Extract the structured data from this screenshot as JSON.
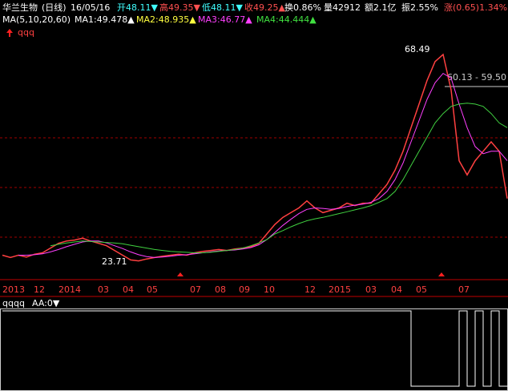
{
  "header": {
    "name": "华兰生物",
    "period": "(日线)",
    "date": "16/05/16",
    "open": "开48.11▼",
    "high": "高49.35▼",
    "low": "低48.11▼",
    "close": "收49.25▲",
    "turnover": "换0.86%",
    "volume": "量42912",
    "amount": "额2.1亿",
    "amplitude": "振2.55%",
    "change": "涨(0.65)1.34%"
  },
  "ma_header": {
    "params": "MA(5,10,20,60)",
    "ma1": "MA1:49.478▲",
    "ma2": "MA2:48.935▲",
    "ma3": "MA3:46.77▲",
    "ma4": "MA4:44.444▲"
  },
  "formula_label": "qqq",
  "chart_data": [
    {
      "type": "line",
      "ylim": [
        20.5,
        71.4
      ],
      "annotations": [
        "68.49",
        "23.71",
        "60.13 - 59.50"
      ],
      "xlabels": [
        "2013",
        "12",
        "2014",
        "03",
        "04",
        "05",
        "07",
        "08",
        "09",
        "10",
        "12",
        "2015",
        "03",
        "04",
        "05",
        "07"
      ],
      "series": [
        {
          "color": "#ff4040",
          "values": [
            25,
            24.5,
            25,
            24.6,
            25.2,
            25.5,
            26.5,
            27.5,
            28,
            28.2,
            28.6,
            28,
            27.5,
            27,
            26,
            25,
            24,
            23.8,
            24.2,
            24.5,
            24.8,
            25,
            25.2,
            25,
            25.5,
            25.8,
            26,
            26.2,
            26,
            26.3,
            26.5,
            26.8,
            27.5,
            29.5,
            31.5,
            33,
            34,
            35,
            36.5,
            35,
            34,
            34.5,
            35,
            36,
            35.5,
            36,
            36,
            38,
            40,
            43,
            47,
            52,
            57,
            62,
            66,
            67.5,
            60,
            45,
            42,
            45,
            47,
            49,
            47,
            37
          ]
        },
        {
          "color": "#ff40ff",
          "values": [
            null,
            null,
            25,
            25,
            25.1,
            25.3,
            25.7,
            26.2,
            26.8,
            27.3,
            27.8,
            28,
            28,
            27.6,
            27,
            26.4,
            25.7,
            25.1,
            24.7,
            24.5,
            24.6,
            24.8,
            25,
            25.1,
            25.3,
            25.5,
            25.7,
            25.9,
            26,
            26.1,
            26.3,
            26.6,
            27.2,
            28.3,
            29.8,
            31.3,
            32.6,
            33.8,
            34.7,
            35,
            34.9,
            34.7,
            34.9,
            35.3,
            35.6,
            35.8,
            36.2,
            37,
            38.5,
            41,
            44.5,
            49,
            53.5,
            58,
            61.5,
            63.5,
            62.5,
            57,
            52,
            48,
            46.5,
            47,
            47,
            45
          ]
        },
        {
          "color": "#40d040",
          "values": [
            null,
            null,
            null,
            null,
            null,
            null,
            27,
            27.3,
            27.6,
            27.8,
            28,
            27.9,
            27.8,
            27.7,
            27.6,
            27.4,
            27.1,
            26.8,
            26.5,
            26.2,
            26,
            25.8,
            25.7,
            25.6,
            25.5,
            25.5,
            25.6,
            25.8,
            26,
            26.2,
            26.5,
            27,
            27.6,
            28.3,
            29.5,
            30.2,
            31,
            31.7,
            32.3,
            32.7,
            33,
            33.4,
            33.8,
            34.2,
            34.6,
            35,
            35.5,
            36.2,
            37,
            38.5,
            41,
            44,
            47,
            50,
            53,
            55,
            56.5,
            57,
            57.2,
            57,
            56.5,
            55,
            53,
            52
          ]
        }
      ]
    },
    {
      "type": "step",
      "title": "qqqq",
      "value_label": "AA:0▼",
      "ylim": [
        0,
        1
      ],
      "series": [
        {
          "color": "#ffffff",
          "values": [
            1,
            1,
            1,
            1,
            1,
            1,
            1,
            1,
            1,
            1,
            1,
            1,
            1,
            1,
            1,
            1,
            1,
            1,
            1,
            1,
            1,
            1,
            1,
            1,
            1,
            1,
            1,
            1,
            1,
            1,
            1,
            1,
            1,
            1,
            1,
            1,
            1,
            1,
            1,
            1,
            1,
            1,
            1,
            1,
            1,
            1,
            1,
            1,
            1,
            1,
            1,
            0,
            0,
            0,
            0,
            0,
            0,
            1,
            0,
            1,
            0,
            1,
            0,
            0
          ]
        }
      ]
    }
  ]
}
